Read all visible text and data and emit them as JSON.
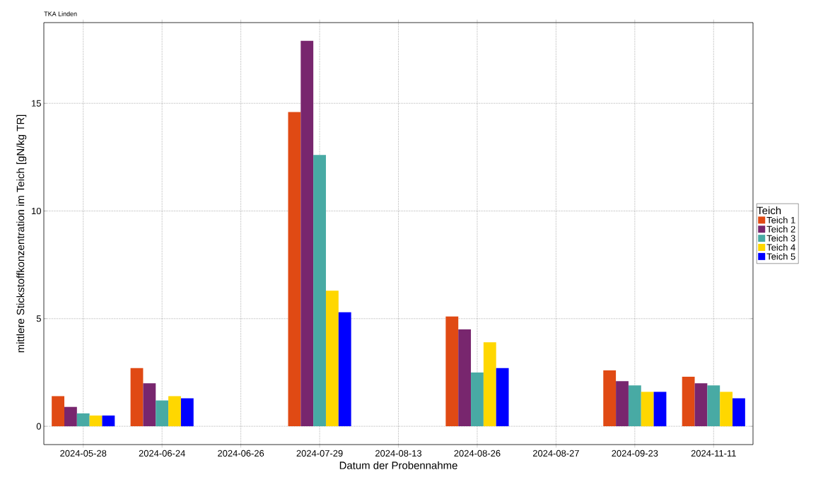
{
  "chart_data": {
    "type": "bar",
    "title": "TKA Linden",
    "xlabel": "Datum der Probennahme",
    "ylabel": "mittlere Stickstoffkonzentration im Teich [gN/kg TR]",
    "legend_title": "Teich",
    "categories": [
      "2024-05-28",
      "2024-06-24",
      "2024-06-26",
      "2024-07-29",
      "2024-08-13",
      "2024-08-26",
      "2024-08-27",
      "2024-09-23",
      "2024-11-11"
    ],
    "series": [
      {
        "name": "Teich 1",
        "color": "#e04a14",
        "values": [
          1.4,
          2.7,
          null,
          14.6,
          null,
          5.1,
          null,
          2.6,
          2.3
        ]
      },
      {
        "name": "Teich 2",
        "color": "#78266e",
        "values": [
          0.9,
          2.0,
          null,
          17.9,
          null,
          4.5,
          null,
          2.1,
          2.0
        ]
      },
      {
        "name": "Teich 3",
        "color": "#48aaa4",
        "values": [
          0.6,
          1.2,
          null,
          12.6,
          null,
          2.5,
          null,
          1.9,
          1.9
        ]
      },
      {
        "name": "Teich 4",
        "color": "#ffd700",
        "values": [
          0.5,
          1.4,
          null,
          6.3,
          null,
          3.9,
          null,
          1.6,
          1.6
        ]
      },
      {
        "name": "Teich 5",
        "color": "#0000ff",
        "values": [
          0.5,
          1.3,
          null,
          5.3,
          null,
          2.7,
          null,
          1.6,
          1.3
        ]
      }
    ],
    "ylim": [
      -0.85,
      18.75
    ],
    "yticks": [
      0,
      5,
      10,
      15
    ],
    "grid": true,
    "legend": "right"
  }
}
